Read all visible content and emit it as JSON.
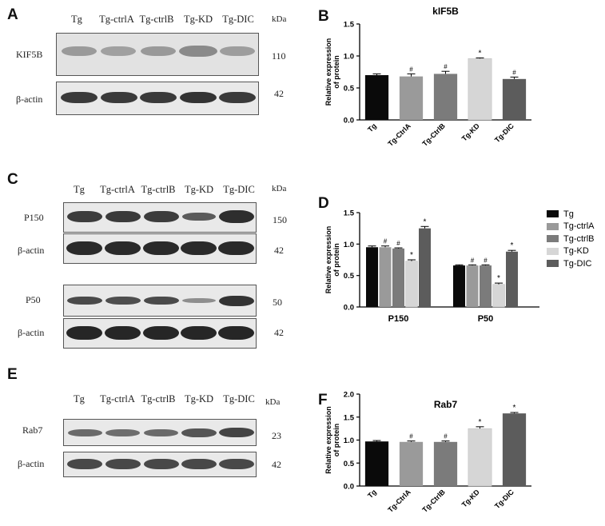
{
  "panels": {
    "a": "A",
    "b": "B",
    "c": "C",
    "d": "D",
    "e": "E",
    "f": "F"
  },
  "lanes": [
    "Tg",
    "Tg-ctrlA",
    "Tg-ctrlB",
    "Tg-KD",
    "Tg-DIC"
  ],
  "kda_label": "kDa",
  "blots": {
    "a": [
      {
        "name": "KIF5B",
        "kda": "110"
      },
      {
        "name": "β-actin",
        "kda": "42"
      }
    ],
    "c": [
      {
        "name": "P150",
        "kda": "150"
      },
      {
        "name": "β-actin",
        "kda": "42"
      },
      {
        "name": "P50",
        "kda": "50"
      },
      {
        "name": "β-actin",
        "kda": "42"
      }
    ],
    "e": [
      {
        "name": "Rab7",
        "kda": "23"
      },
      {
        "name": "β-actin",
        "kda": "42"
      }
    ]
  },
  "colors": {
    "Tg": "#0a0a0a",
    "Tg-ctrlA": "#9a9a9a",
    "Tg-ctrlB": "#7b7b7b",
    "Tg-KD": "#d6d6d6",
    "Tg-DIC": "#5c5c5c"
  },
  "chart_data": [
    {
      "id": "b",
      "type": "bar",
      "title": "kIF5B",
      "ylabel": "Relative expression of protein",
      "ylim": [
        0,
        1.5
      ],
      "yticks": [
        "0.0",
        "0.5",
        "1.0",
        "1.5"
      ],
      "categories": [
        "Tg",
        "Tg-CtrlA",
        "Tg-CtrlB",
        "Tg-KD",
        "Tg-DIC"
      ],
      "values": [
        0.7,
        0.68,
        0.72,
        0.96,
        0.64
      ],
      "errors": [
        0.02,
        0.04,
        0.04,
        0.01,
        0.03
      ],
      "annotations": [
        "",
        "#",
        "#",
        "*",
        "#"
      ]
    },
    {
      "id": "d",
      "type": "bar",
      "title": "",
      "ylabel": "Relative expression of protein",
      "ylim": [
        0,
        1.5
      ],
      "yticks": [
        "0.0",
        "0.5",
        "1.0",
        "1.5"
      ],
      "categories": [
        "P150",
        "P50"
      ],
      "series": [
        {
          "name": "Tg",
          "values": [
            0.95,
            0.66
          ],
          "errors": [
            0.02,
            0.01
          ],
          "annotations": [
            "",
            ""
          ]
        },
        {
          "name": "Tg-ctrlA",
          "values": [
            0.95,
            0.66
          ],
          "errors": [
            0.02,
            0.01
          ],
          "annotations": [
            "#",
            "#"
          ]
        },
        {
          "name": "Tg-ctrlB",
          "values": [
            0.93,
            0.66
          ],
          "errors": [
            0.01,
            0.01
          ],
          "annotations": [
            "#",
            "#"
          ]
        },
        {
          "name": "Tg-KD",
          "values": [
            0.73,
            0.36
          ],
          "errors": [
            0.02,
            0.02
          ],
          "annotations": [
            "*",
            "*"
          ]
        },
        {
          "name": "Tg-DIC",
          "values": [
            1.25,
            0.88
          ],
          "errors": [
            0.03,
            0.02
          ],
          "annotations": [
            "*",
            "*"
          ]
        }
      ],
      "legend": "right"
    },
    {
      "id": "f",
      "type": "bar",
      "title": "Rab7",
      "ylabel": "Relative expression of protein",
      "ylim": [
        0,
        2.0
      ],
      "yticks": [
        "0.0",
        "0.5",
        "1.0",
        "1.5",
        "2.0"
      ],
      "categories": [
        "Tg",
        "Tg-CtrlA",
        "Tg-CtrlB",
        "Tg-KD",
        "Tg-DIC"
      ],
      "values": [
        0.97,
        0.96,
        0.96,
        1.25,
        1.58
      ],
      "errors": [
        0.02,
        0.02,
        0.02,
        0.04,
        0.02
      ],
      "annotations": [
        "",
        "#",
        "#",
        "*",
        "*"
      ]
    }
  ]
}
